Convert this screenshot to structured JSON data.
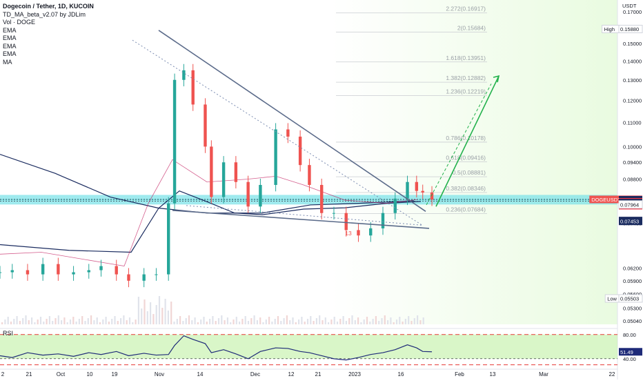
{
  "header": {
    "title": "Dogecoin / Tether, 1D, KUCOIN",
    "indicator_1": "TD_MA_beta_v2.07 by JDLim",
    "indicator_2": "Vol · DOGE",
    "ema_labels": [
      "EMA",
      "EMA",
      "EMA",
      "EMA"
    ],
    "ma_label": "MA"
  },
  "colors": {
    "up": "#26a69a",
    "down": "#ef5350",
    "accent_green": "#22b14c",
    "trendline": "#5b6b8a",
    "highlight_band": "#7fe3e8",
    "fib_line": "#c9ccd1",
    "rsi_line": "#1e2a78",
    "rsi_band": "#b9ef9a"
  },
  "chart_data": {
    "type": "candlestick",
    "symbol": "DOGEUSDT",
    "currency": "USDT",
    "exchange": "KUCOIN",
    "timeframe": "1D",
    "y_scale": "log",
    "ylim": [
      0.0497,
      0.178
    ],
    "price_axis_ticks": [
      "0.17000",
      "0.15000",
      "0.14000",
      "0.13000",
      "0.12000",
      "0.11000",
      "0.10000",
      "0.09400",
      "0.08800",
      "0.07400",
      "0.06200",
      "0.05900",
      "0.05600",
      "0.05300",
      "0.05040"
    ],
    "price_axis_tick_values": [
      0.17,
      0.15,
      0.14,
      0.13,
      0.12,
      0.11,
      0.1,
      0.094,
      0.088,
      0.074,
      0.062,
      0.059,
      0.056,
      0.053,
      0.0504
    ],
    "price_labels": [
      {
        "text": "High",
        "value": "0.15880",
        "role": "high"
      },
      {
        "text": "DOGEUSDT",
        "value": "0.08124",
        "sub": "10:12:20",
        "role": "last"
      },
      {
        "text": "",
        "value": "0.08113",
        "role": "ma"
      },
      {
        "text": "",
        "value": "0.08065",
        "role": "ma"
      },
      {
        "text": "",
        "value": "0.08046",
        "role": "red"
      },
      {
        "text": "",
        "value": "0.08021",
        "role": "ma"
      },
      {
        "text": "",
        "value": "0.07964",
        "role": "plain"
      },
      {
        "text": "",
        "value": "0.07475",
        "role": "ma"
      },
      {
        "text": "",
        "value": "0.07453",
        "role": "ma"
      },
      {
        "text": "Low",
        "value": "0.05503",
        "role": "low"
      }
    ],
    "x_axis_ticks": [
      "2",
      "21",
      "Oct",
      "10",
      "19",
      "Nov",
      "14",
      "Dec",
      "12",
      "21",
      "2023",
      "16",
      "Feb",
      "13",
      "Mar",
      "22"
    ],
    "fib_levels": [
      {
        "label": "2.272(0.16917)",
        "value": 0.16917
      },
      {
        "label": "2(0.15684)",
        "value": 0.15684
      },
      {
        "label": "1.618(0.13951)",
        "value": 0.13951
      },
      {
        "label": "1.382(0.12882)",
        "value": 0.12882
      },
      {
        "label": "1.236(0.12219)",
        "value": 0.12219
      },
      {
        "label": "0.786(0.10178)",
        "value": 0.10178
      },
      {
        "label": "0.618(0.09416)",
        "value": 0.09416
      },
      {
        "label": "0.5(0.08881)",
        "value": 0.08881
      },
      {
        "label": "0.382(0.08346)",
        "value": 0.08346
      },
      {
        "label": "0.236(0.07684)",
        "value": 0.07684
      }
    ],
    "annotation": "13",
    "candle_dates": [
      "Sep 2",
      "Sep 6",
      "Sep 11",
      "Sep 16",
      "Sep 21",
      "Sep 26",
      "Oct 1",
      "Oct 5",
      "Oct 10",
      "Oct 14",
      "Oct 19",
      "Oct 23",
      "Oct 27",
      "Oct 29",
      "Nov 1",
      "Nov 4",
      "Nov 8",
      "Nov 10",
      "Nov 14",
      "Nov 18",
      "Nov 22",
      "Nov 26",
      "Dec 1",
      "Dec 5",
      "Dec 9",
      "Dec 12",
      "Dec 16",
      "Dec 20",
      "Dec 24",
      "Dec 28",
      "Jan 1",
      "Jan 5",
      "Jan 9",
      "Jan 13",
      "Jan 16",
      "Jan 18",
      "Jan 21"
    ],
    "candle_close": [
      0.061,
      0.0615,
      0.0605,
      0.063,
      0.0605,
      0.061,
      0.0615,
      0.0625,
      0.0605,
      0.059,
      0.0605,
      0.0605,
      0.08,
      0.13,
      0.135,
      0.118,
      0.1,
      0.082,
      0.094,
      0.087,
      0.079,
      0.086,
      0.107,
      0.104,
      0.093,
      0.086,
      0.077,
      0.077,
      0.072,
      0.0705,
      0.0725,
      0.077,
      0.0815,
      0.087,
      0.084,
      0.0835,
      0.0812
    ],
    "rsi": {
      "label": "RSI",
      "levels": [
        "80.00",
        "40.00"
      ],
      "current": "51.49",
      "values": [
        45,
        42,
        50,
        46,
        48,
        44,
        50,
        47,
        52,
        45,
        49,
        46,
        47,
        62,
        78,
        72,
        65,
        50,
        55,
        48,
        40,
        52,
        58,
        57,
        52,
        50,
        45,
        40,
        38,
        42,
        47,
        50,
        55,
        63,
        58,
        52,
        51.49
      ]
    }
  }
}
